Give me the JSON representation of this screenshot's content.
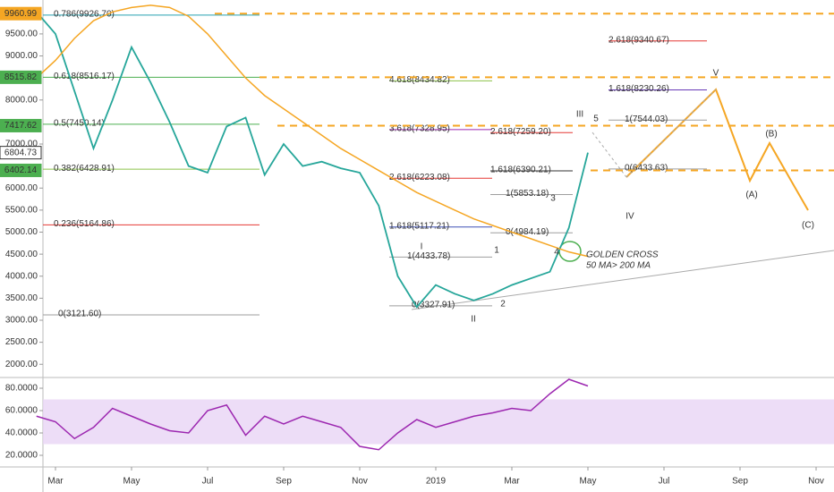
{
  "chart_data": [
    {
      "type": "line",
      "categories": [
        null,
        "Mar",
        null,
        null,
        null,
        "May",
        null,
        null,
        null,
        "Jul",
        null,
        null,
        null,
        "Sep",
        null,
        null,
        null,
        "Nov",
        null,
        null,
        null,
        "2019",
        null,
        null,
        null,
        "Mar",
        null,
        null,
        null,
        "May",
        null,
        null,
        null,
        "Jul",
        null,
        null,
        null,
        "Sep",
        null,
        null,
        null,
        "Nov",
        null
      ],
      "series": [
        {
          "color": "#26a69a",
          "values": [
            10000,
            9500,
            8200,
            6900,
            8000,
            9200,
            8400,
            7500,
            6500,
            6350,
            7400,
            7600,
            6300,
            7000,
            6500,
            6600,
            6450,
            6350,
            5600,
            4000,
            3300,
            3800,
            3600,
            3450,
            3600,
            3800,
            3950,
            4100,
            5100,
            6804.73,
            null,
            null,
            null,
            null,
            null,
            null,
            null,
            null,
            null,
            null,
            null,
            null,
            null
          ]
        },
        {
          "color": "#f5a623",
          "values": [
            8500,
            8900,
            9400,
            9800,
            10000,
            10100,
            10150,
            10100,
            9900,
            9500,
            9000,
            8500,
            8100,
            7800,
            7500,
            7200,
            6900,
            6650,
            6400,
            6150,
            5900,
            5700,
            5500,
            5300,
            5150,
            5000,
            4850,
            4700,
            4550,
            4450,
            null,
            null,
            null,
            null,
            null,
            null,
            null,
            null,
            null,
            null,
            null,
            null,
            null
          ]
        }
      ],
      "ylim": [
        1700,
        10270
      ],
      "yticks": [
        {
          "value": 2000,
          "label": "2000.00"
        },
        {
          "value": 2500,
          "label": "2500.00"
        },
        {
          "value": 3000,
          "label": "3000.00"
        },
        {
          "value": 3500,
          "label": "3500.00"
        },
        {
          "value": 4000,
          "label": "4000.00"
        },
        {
          "value": 4500,
          "label": "4500.00"
        },
        {
          "value": 5000,
          "label": "5000.00"
        },
        {
          "value": 5500,
          "label": "5500.00"
        },
        {
          "value": 6000,
          "label": "6000.00"
        },
        {
          "value": 7000,
          "label": "7000.00"
        },
        {
          "value": 8000,
          "label": "8000.00"
        },
        {
          "value": 9000,
          "label": "9000.00"
        },
        {
          "value": 9500,
          "label": "9500.00"
        }
      ],
      "price_labels": [
        {
          "value": 9960.99,
          "label": "9960.99",
          "color": "#f5a623"
        },
        {
          "value": 8515.82,
          "label": "8515.82",
          "color": "#4caf50"
        },
        {
          "value": 7417.62,
          "label": "7417.62",
          "color": "#4caf50"
        },
        {
          "value": 6804.73,
          "label": "6804.73",
          "color": "#ffffff"
        },
        {
          "value": 6402.14,
          "label": "6402.14",
          "color": "#4caf50"
        }
      ],
      "levels": [
        {
          "label": "0.786(9926.70)",
          "value": 9926.7,
          "color": "#26a0b0"
        },
        {
          "label": "0.618(8516.17)",
          "value": 8516.17,
          "color": "#4caf50"
        },
        {
          "label": "0.5(7450.14)",
          "value": 7450.14,
          "color": "#4caf50"
        },
        {
          "label": "0.382(6428.91)",
          "value": 6428.91,
          "color": "#8bc34a"
        },
        {
          "label": "0.236(5164.86)",
          "value": 5164.86,
          "color": "#e53935"
        },
        {
          "label": "0(3121.60)",
          "value": 3121.6,
          "color": "#9e9e9e"
        },
        {
          "label": "4.618(8434.82)",
          "value": 8434.82,
          "color": "#8bc34a"
        },
        {
          "label": "3.618(7328.95)",
          "value": 7328.95,
          "color": "#9c27b0"
        },
        {
          "label": "2.618(6223.08)",
          "value": 6223.08,
          "color": "#e53935"
        },
        {
          "label": "1.618(5117.21)",
          "value": 5117.21,
          "color": "#3f51b5"
        },
        {
          "label": "1(4433.78)",
          "value": 4433.78,
          "color": "#9e9e9e"
        },
        {
          "label": "0(3327.91)",
          "value": 3327.91,
          "color": "#9e9e9e"
        },
        {
          "label": "2.618(9340.67)",
          "value": 9340.67,
          "color": "#e53935"
        },
        {
          "label": "1.618(8230.26)",
          "value": 8230.26,
          "color": "#673ab7"
        },
        {
          "label": "1(7544.03)",
          "value": 7544.03,
          "color": "#9e9e9e"
        },
        {
          "label": "0(6433.63)",
          "value": 6433.63,
          "color": "#9e9e9e"
        },
        {
          "label": "2.618(7259.20)",
          "value": 7259.2,
          "color": "#e53935"
        },
        {
          "label": "1.618(6390.21)",
          "value": 6390.21,
          "color": "#333333"
        },
        {
          "label": "1(5853.18)",
          "value": 5853.18,
          "color": "#9e9e9e"
        },
        {
          "label": "0(4984.19)",
          "value": 4984.19,
          "color": "#9e9e9e"
        }
      ],
      "wave_labels": [
        "III",
        "5",
        "IV",
        "I",
        "1",
        "II",
        "2",
        "3",
        "4",
        "V",
        "(A)",
        "(B)",
        "(C)",
        "GOLDEN CROSS",
        "50 MA> 200 MA"
      ]
    },
    {
      "type": "line",
      "series": [
        {
          "color": "#9c27b0",
          "values": [
            55,
            50,
            35,
            45,
            62,
            55,
            48,
            42,
            40,
            60,
            65,
            38,
            55,
            48,
            55,
            50,
            45,
            28,
            25,
            40,
            52,
            45,
            50,
            55,
            58,
            62,
            60,
            75,
            88,
            82,
            null,
            null,
            null,
            null,
            null,
            null,
            null,
            null,
            null,
            null,
            null,
            null,
            null
          ]
        }
      ],
      "ylim": [
        9.6,
        88.8
      ],
      "band": [
        30,
        70
      ],
      "yticks": [
        {
          "value": 20,
          "label": "20.0000"
        },
        {
          "value": 40,
          "label": "40.0000"
        },
        {
          "value": 60,
          "label": "60.0000"
        },
        {
          "value": 80,
          "label": "80.0000"
        }
      ]
    }
  ]
}
